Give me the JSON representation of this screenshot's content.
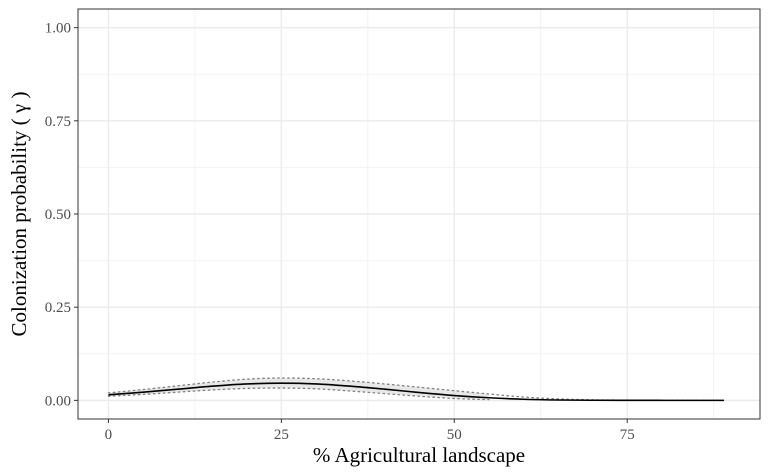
{
  "chart_data": {
    "type": "line",
    "xlabel": "% Agricultural landscape",
    "ylabel": "Colonization probability ( γ )",
    "xlim": [
      -4.4,
      94.2
    ],
    "ylim": [
      -0.05,
      1.05
    ],
    "x_ticks": [
      0,
      25,
      50,
      75
    ],
    "y_ticks": [
      0.0,
      0.25,
      0.5,
      0.75,
      1.0
    ],
    "x_tick_labels": [
      "0",
      "25",
      "50",
      "75"
    ],
    "y_tick_labels": [
      "0.00",
      "0.25",
      "0.50",
      "0.75",
      "1.00"
    ],
    "grid": true,
    "legend": "none",
    "series": [
      {
        "role": "estimate",
        "style": "solid",
        "color": "#000000",
        "x": [
          0,
          5,
          10,
          15,
          20,
          25,
          30,
          35,
          40,
          45,
          50,
          55,
          60,
          65,
          70,
          75,
          80,
          85,
          89
        ],
        "y": [
          0.015,
          0.022,
          0.03,
          0.038,
          0.044,
          0.046,
          0.044,
          0.038,
          0.03,
          0.021,
          0.013,
          0.007,
          0.003,
          0.001,
          0.0003,
          0.0001,
          0.0,
          0.0,
          0.0
        ]
      },
      {
        "role": "upper-ci",
        "style": "dotted",
        "color": "#808080",
        "x": [
          0,
          5,
          10,
          15,
          20,
          25,
          30,
          35,
          40,
          45,
          50,
          55,
          60,
          65,
          70,
          75,
          80,
          85,
          89
        ],
        "y": [
          0.02,
          0.029,
          0.039,
          0.049,
          0.057,
          0.06,
          0.058,
          0.052,
          0.044,
          0.035,
          0.026,
          0.017,
          0.009,
          0.004,
          0.0015,
          0.0005,
          0.0001,
          0.0,
          0.0
        ]
      },
      {
        "role": "lower-ci",
        "style": "dotted",
        "color": "#808080",
        "x": [
          0,
          5,
          10,
          15,
          20,
          25,
          30,
          35,
          40,
          45,
          50,
          55
        ],
        "y": [
          0.011,
          0.016,
          0.022,
          0.028,
          0.032,
          0.033,
          0.031,
          0.025,
          0.018,
          0.011,
          0.005,
          0.002
        ]
      }
    ],
    "ribbon_color": "#d9d9d9"
  }
}
